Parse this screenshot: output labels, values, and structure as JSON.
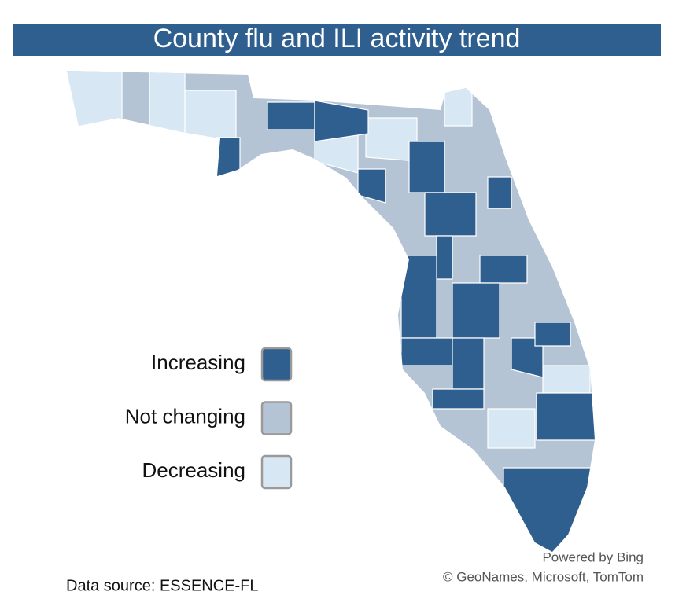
{
  "header": {
    "title": "County flu and ILI activity trend"
  },
  "legend": {
    "items": [
      {
        "label": "Increasing",
        "color": "#2f5f8f"
      },
      {
        "label": "Not changing",
        "color": "#b4c4d5"
      },
      {
        "label": "Decreasing",
        "color": "#d7e7f3"
      }
    ]
  },
  "attribution": [
    "Powered by Bing",
    "© GeoNames, Microsoft, TomTom"
  ],
  "source": "Data source: ESSENCE-FL"
}
